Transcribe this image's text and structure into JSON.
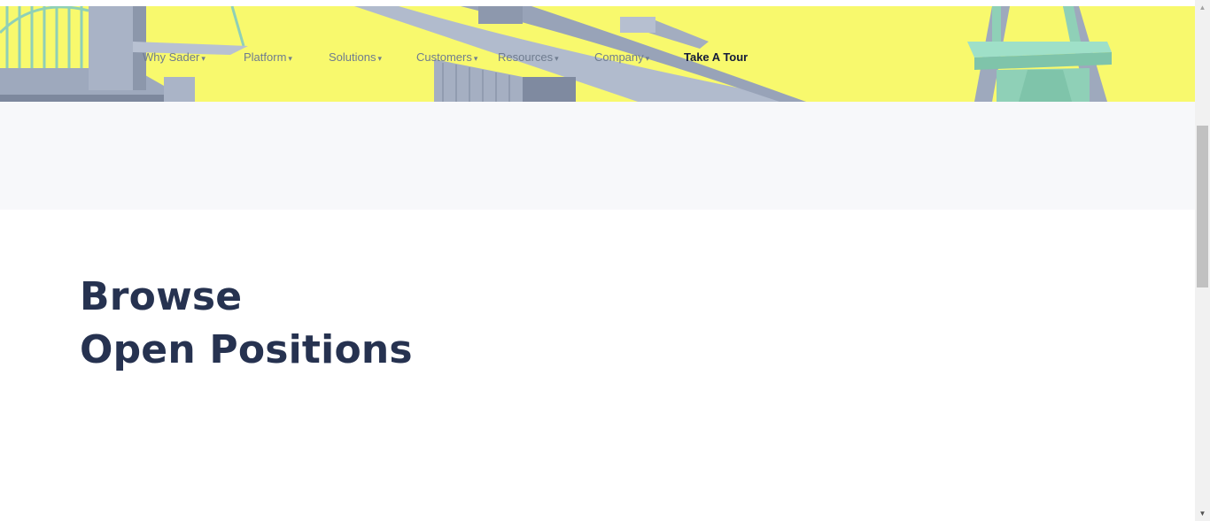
{
  "nav": {
    "items": [
      {
        "label": "Why Sader",
        "caret": "▾"
      },
      {
        "label": "Platform",
        "caret": "▾"
      },
      {
        "label": "Solutions",
        "caret": "▾"
      },
      {
        "label": "Customers",
        "caret": "▾"
      },
      {
        "label": "Resources",
        "caret": "▾"
      },
      {
        "label": "Company",
        "caret": "▾"
      }
    ],
    "cta_label": "Take A Tour"
  },
  "hero": {
    "background_color": "#f8f96d",
    "illustration": "3d-city-structures-illustration"
  },
  "section": {
    "heading_line1": "Browse",
    "heading_line2": "Open Positions"
  },
  "scrollbar": {
    "up_arrow": "▲",
    "down_arrow": "▼"
  }
}
